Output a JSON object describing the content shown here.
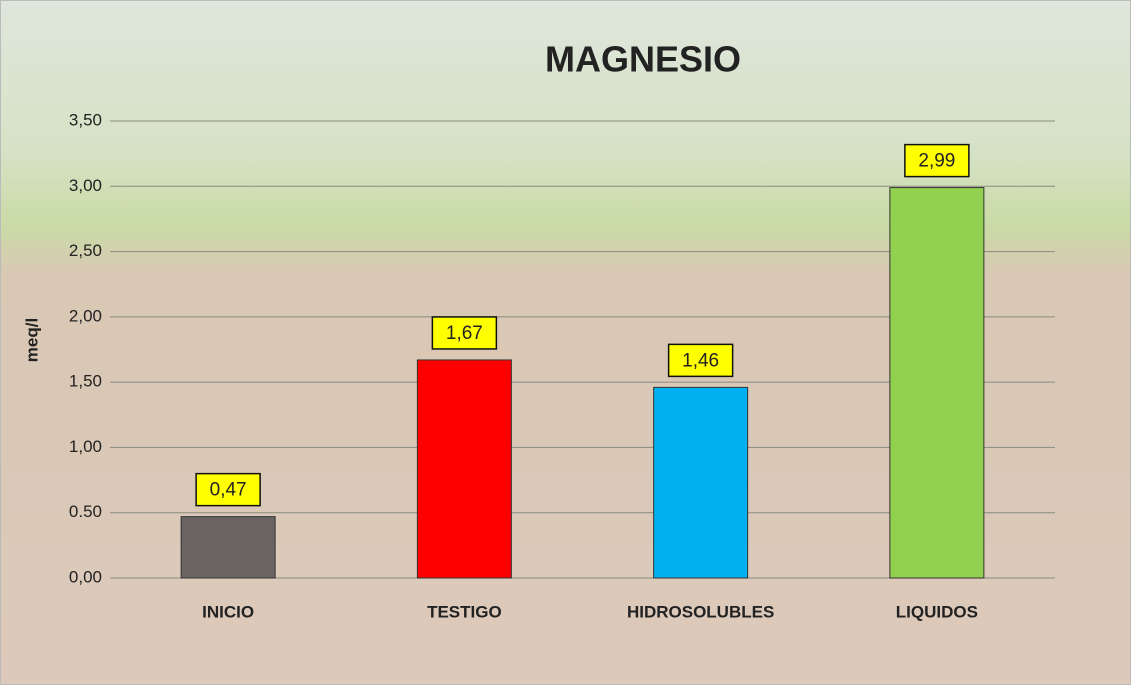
{
  "chart_data": {
    "type": "bar",
    "title": "MAGNESIO",
    "y_label": "meq/l",
    "categories": [
      "INICIO",
      "TESTIGO",
      "HIDROSOLUBLES",
      "LIQUIDOS"
    ],
    "values": [
      0.47,
      1.67,
      1.46,
      2.99
    ],
    "value_labels": [
      "0,47",
      "1,67",
      "1,46",
      "2,99"
    ],
    "colors": [
      "#6b6464",
      "#ff0000",
      "#00b0f0",
      "#92d050"
    ],
    "ylim": [
      0,
      3.5
    ],
    "yticks": [
      {
        "value": 0,
        "label": "0,00"
      },
      {
        "value": 0.5,
        "label": "0.50"
      },
      {
        "value": 1,
        "label": "1,00"
      },
      {
        "value": 1.5,
        "label": "1,50"
      },
      {
        "value": 2,
        "label": "2,00"
      },
      {
        "value": 2.5,
        "label": "2,50"
      },
      {
        "value": 3,
        "label": "3,00"
      },
      {
        "value": 3.5,
        "label": "3,50"
      }
    ],
    "grid": true
  }
}
